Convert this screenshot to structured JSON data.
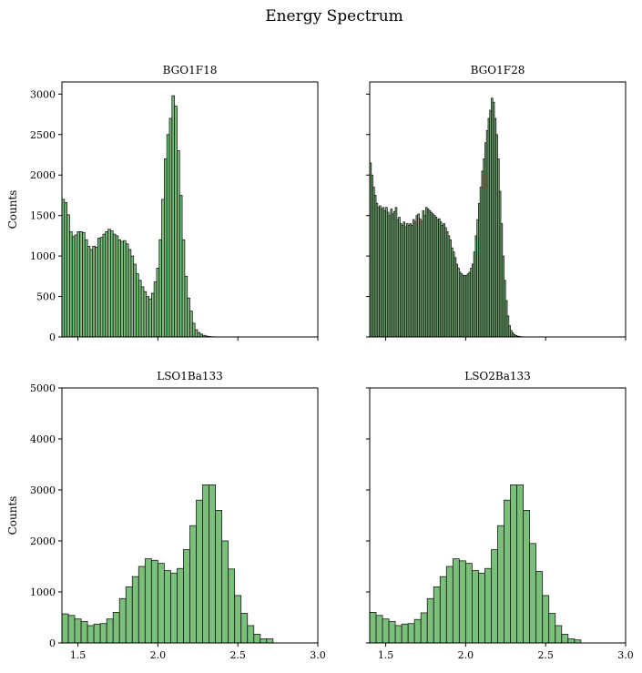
{
  "figure": {
    "title": "Energy Spectrum"
  },
  "style": {
    "bar_fill": "#4daa4d",
    "bar_edge": "#1a1a1a",
    "axis_color": "#000000"
  },
  "chart_data": [
    {
      "type": "bar",
      "title": "BGO1F18",
      "ylabel": "Counts",
      "xlabel": "",
      "xlim": [
        1.4,
        3.0
      ],
      "ylim": [
        0,
        3150
      ],
      "xticks": [
        1.5,
        2.0,
        2.5,
        3.0
      ],
      "yticks": [
        0,
        500,
        1000,
        1500,
        2000,
        2500,
        3000
      ],
      "show_xticklabels": false,
      "show_yticklabels": true,
      "bin_start": 1.4,
      "bin_width": 0.016,
      "values": [
        1700,
        1660,
        1510,
        1300,
        1240,
        1260,
        1300,
        1300,
        1290,
        1200,
        1120,
        1080,
        1120,
        1110,
        1220,
        1230,
        1270,
        1300,
        1330,
        1310,
        1270,
        1250,
        1200,
        1180,
        1190,
        1150,
        1080,
        1000,
        900,
        780,
        700,
        620,
        560,
        500,
        470,
        540,
        680,
        850,
        1200,
        1700,
        2200,
        2500,
        2700,
        2980,
        2850,
        2300,
        1750,
        1200,
        750,
        480,
        320,
        170,
        90,
        55,
        35,
        20,
        12,
        6,
        3,
        2,
        1,
        0,
        0,
        0,
        0,
        0,
        0,
        0,
        0,
        0,
        0,
        0,
        0,
        0,
        0,
        0,
        0,
        0,
        0,
        0,
        0,
        0,
        0,
        0,
        0,
        0,
        0,
        0,
        0,
        0,
        0,
        0,
        0,
        0,
        0,
        0,
        0,
        0,
        0,
        0
      ]
    },
    {
      "type": "bar",
      "title": "BGO1F28",
      "ylabel": "",
      "xlabel": "",
      "xlim": [
        1.4,
        3.0
      ],
      "ylim": [
        0,
        3150
      ],
      "xticks": [
        1.5,
        2.0,
        2.5,
        3.0
      ],
      "yticks": [
        0,
        500,
        1000,
        1500,
        2000,
        2500,
        3000
      ],
      "show_xticklabels": false,
      "show_yticklabels": false,
      "bin_start": 1.4,
      "bin_width": 0.01,
      "values": [
        2150,
        2000,
        1850,
        1750,
        1650,
        1600,
        1620,
        1580,
        1600,
        1560,
        1600,
        1540,
        1500,
        1580,
        1520,
        1550,
        1600,
        1450,
        1480,
        1400,
        1380,
        1420,
        1360,
        1400,
        1380,
        1400,
        1380,
        1450,
        1420,
        1500,
        1520,
        1460,
        1430,
        1560,
        1500,
        1600,
        1580,
        1560,
        1540,
        1520,
        1500,
        1480,
        1450,
        1460,
        1420,
        1380,
        1400,
        1350,
        1300,
        1250,
        1200,
        1100,
        1050,
        980,
        900,
        850,
        800,
        780,
        760,
        760,
        760,
        780,
        800,
        850,
        900,
        1050,
        1250,
        1450,
        1650,
        1850,
        2050,
        2200,
        2400,
        2550,
        2700,
        2800,
        2950,
        2900,
        2700,
        2500,
        2200,
        1800,
        1400,
        1000,
        700,
        450,
        260,
        140,
        80,
        50,
        30,
        18,
        10,
        6,
        4,
        2,
        1,
        1,
        0,
        0,
        0,
        0,
        0,
        0,
        0,
        0,
        0,
        0,
        0,
        0,
        0,
        0,
        0,
        0,
        0,
        0,
        0,
        0,
        0,
        0,
        0,
        0,
        0,
        0,
        0,
        0,
        0,
        0,
        0,
        0,
        0,
        0,
        0,
        0,
        0,
        0,
        0,
        0,
        0,
        0,
        0,
        0,
        0,
        0,
        0,
        0,
        0,
        0,
        0,
        0,
        0,
        0,
        0,
        0,
        0,
        0,
        0,
        0,
        0,
        0,
        0,
        0
      ]
    },
    {
      "type": "bar",
      "title": "LSO1Ba133",
      "ylabel": "Counts",
      "xlabel": "",
      "xlim": [
        1.4,
        3.0
      ],
      "ylim": [
        0,
        5000
      ],
      "xticks": [
        1.5,
        2.0,
        2.5,
        3.0
      ],
      "xticklabels": [
        "1.5",
        "2.0",
        "2.5",
        "3.0"
      ],
      "yticks": [
        0,
        1000,
        2000,
        3000,
        4000,
        5000
      ],
      "show_xticklabels": true,
      "show_yticklabels": true,
      "bin_start": 1.4,
      "bin_width": 0.04,
      "values": [
        570,
        540,
        470,
        420,
        340,
        370,
        380,
        470,
        600,
        870,
        1100,
        1300,
        1500,
        1650,
        1620,
        1560,
        1420,
        1370,
        1460,
        1830,
        2300,
        2800,
        3100,
        3100,
        2600,
        2000,
        1450,
        930,
        580,
        340,
        170,
        80,
        80
      ]
    },
    {
      "type": "bar",
      "title": "LSO2Ba133",
      "ylabel": "",
      "xlabel": "",
      "xlim": [
        1.4,
        3.0
      ],
      "ylim": [
        0,
        5000
      ],
      "xticks": [
        1.5,
        2.0,
        2.5,
        3.0
      ],
      "xticklabels": [
        "1.5",
        "2.0",
        "2.5",
        "3.0"
      ],
      "yticks": [
        0,
        1000,
        2000,
        3000,
        4000,
        5000
      ],
      "show_xticklabels": true,
      "show_yticklabels": false,
      "bin_start": 1.4,
      "bin_width": 0.04,
      "values": [
        600,
        540,
        470,
        420,
        340,
        370,
        380,
        460,
        590,
        870,
        1100,
        1300,
        1500,
        1650,
        1610,
        1560,
        1420,
        1370,
        1460,
        1830,
        2300,
        2800,
        3100,
        3100,
        2600,
        1950,
        1400,
        930,
        580,
        340,
        170,
        80,
        60
      ]
    }
  ]
}
